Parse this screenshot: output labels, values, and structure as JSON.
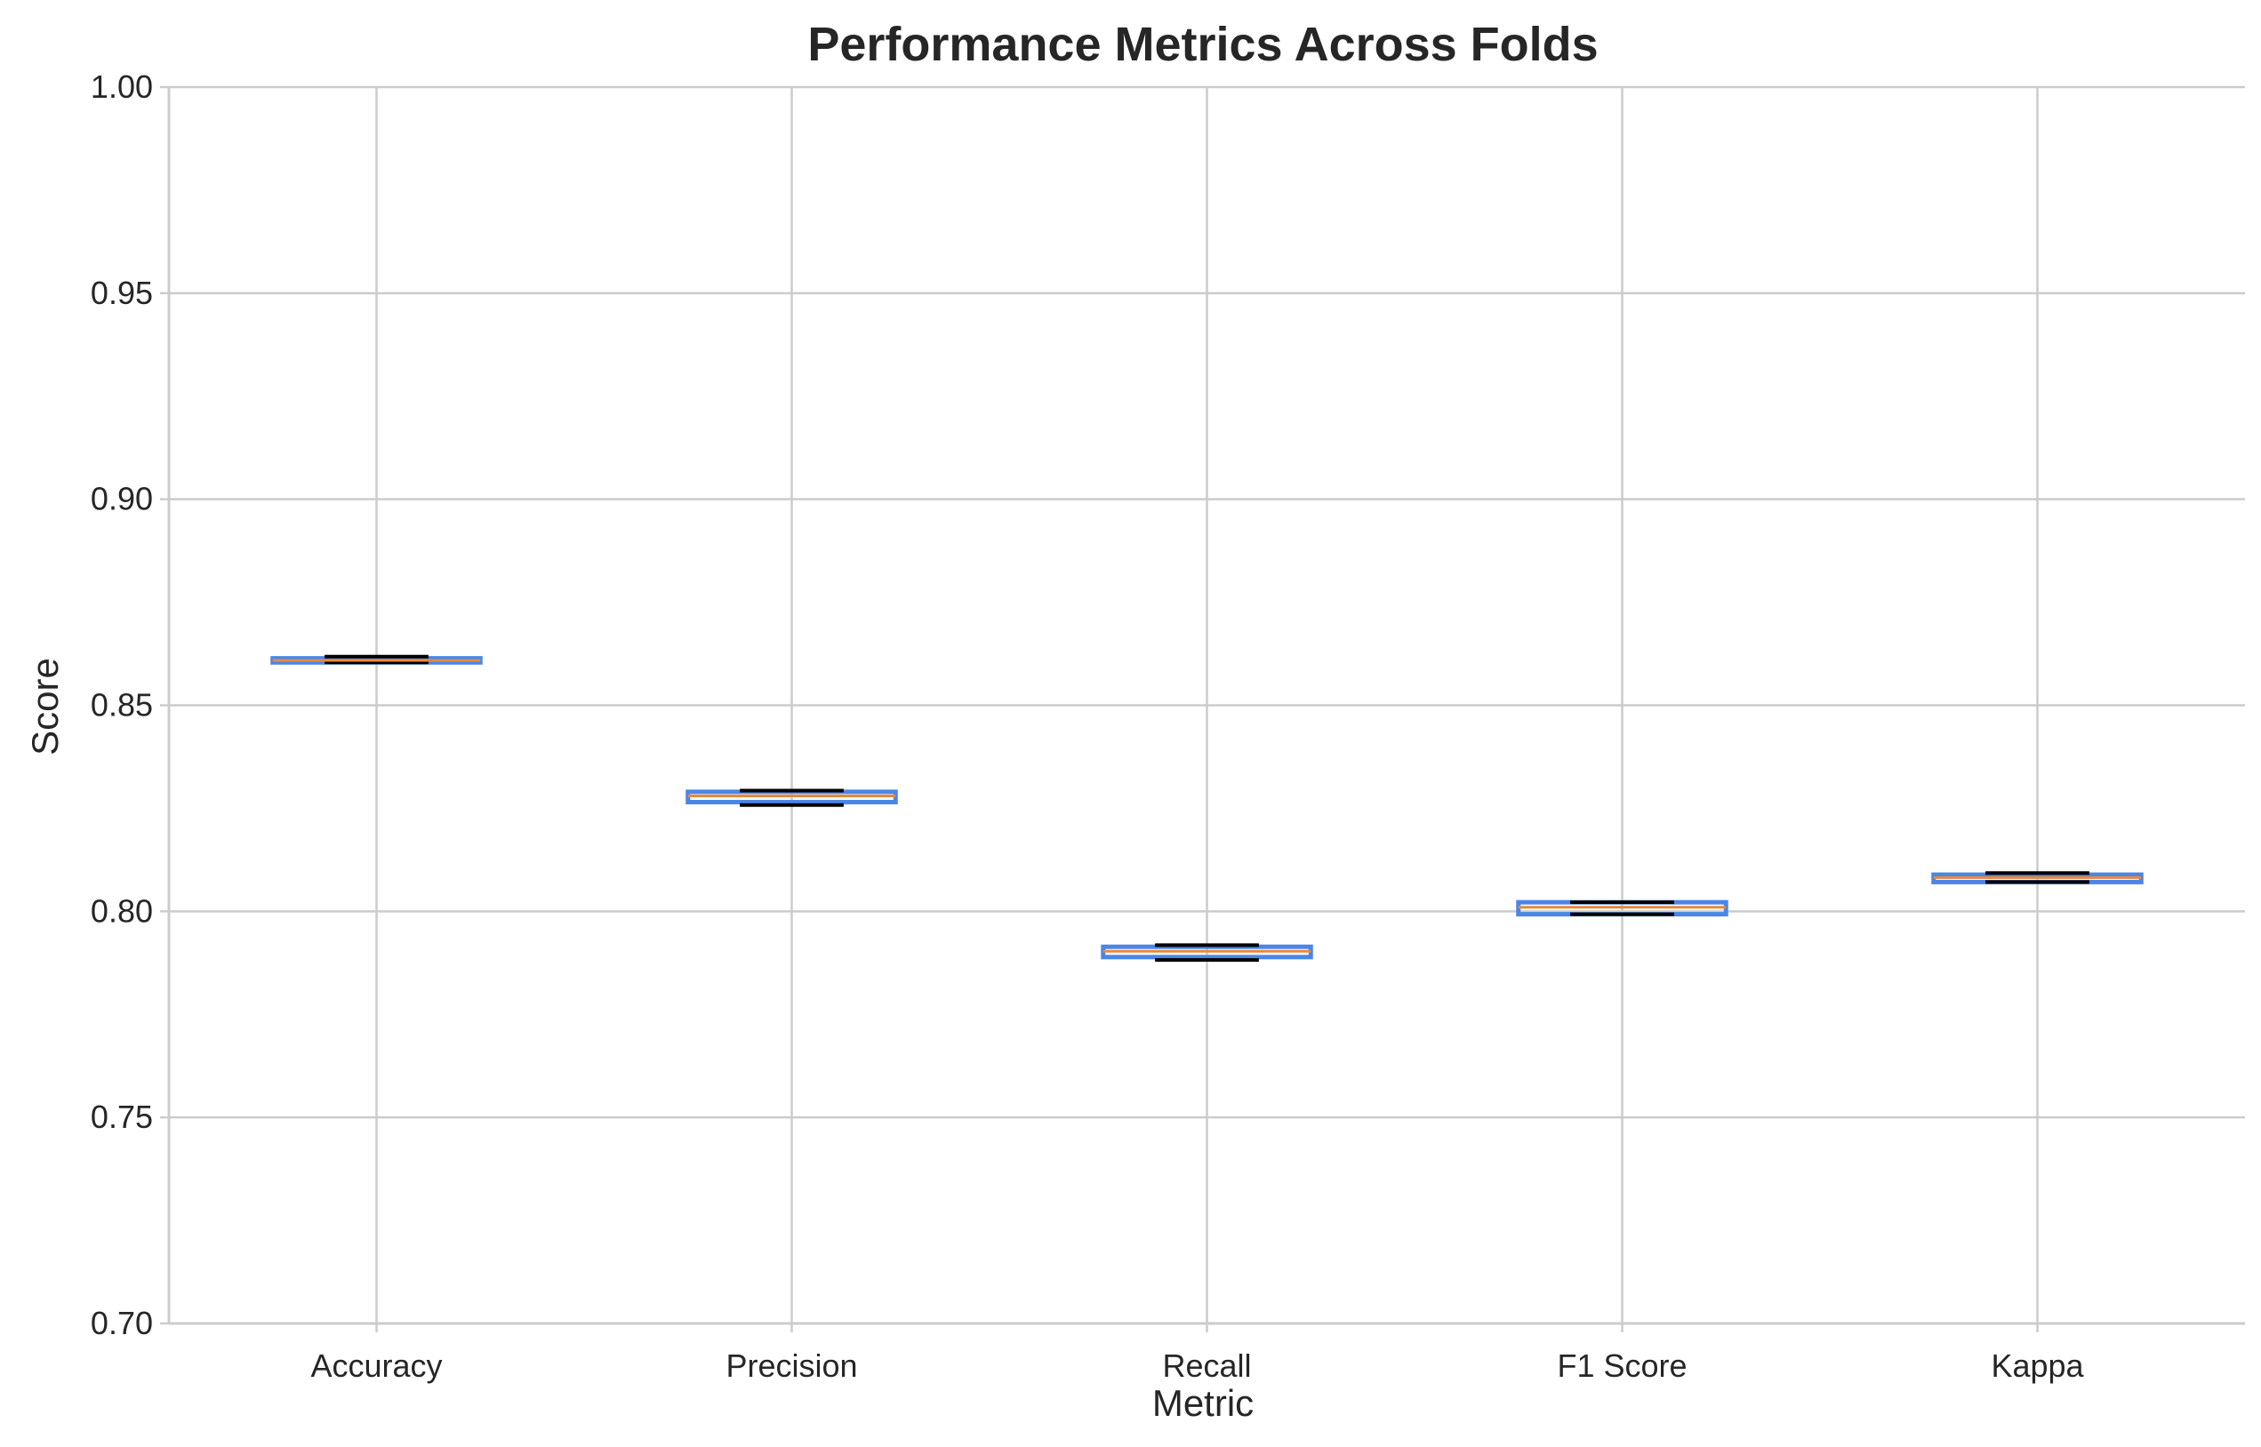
{
  "chart_data": {
    "type": "box",
    "title": "Performance Metrics Across Folds",
    "xlabel": "Metric",
    "ylabel": "Score",
    "ylim": [
      0.7,
      1.0
    ],
    "yticks": [
      "0.70",
      "0.75",
      "0.80",
      "0.85",
      "0.90",
      "0.95",
      "1.00"
    ],
    "categories": [
      "Accuracy",
      "Precision",
      "Recall",
      "F1 Score",
      "Kappa"
    ],
    "boxes": [
      {
        "category": "Accuracy",
        "whisker_low": 0.8604,
        "q1": 0.8604,
        "median": 0.8609,
        "q3": 0.8614,
        "whisker_high": 0.8618
      },
      {
        "category": "Precision",
        "whisker_low": 0.8258,
        "q1": 0.8265,
        "median": 0.828,
        "q3": 0.829,
        "whisker_high": 0.8293
      },
      {
        "category": "Recall",
        "whisker_low": 0.7882,
        "q1": 0.7889,
        "median": 0.7903,
        "q3": 0.7914,
        "whisker_high": 0.7918
      },
      {
        "category": "F1 Score",
        "whisker_low": 0.7993,
        "q1": 0.7993,
        "median": 0.801,
        "q3": 0.8022,
        "whisker_high": 0.8022
      },
      {
        "category": "Kappa",
        "whisker_low": 0.8071,
        "q1": 0.8071,
        "median": 0.8082,
        "q3": 0.8089,
        "whisker_high": 0.8093
      }
    ],
    "grid": true,
    "colors": {
      "box_edge": "#4a86e8",
      "median": "#e8883a",
      "whisker": "#000000",
      "grid": "#cccccc",
      "axis": "#cccccc"
    }
  }
}
